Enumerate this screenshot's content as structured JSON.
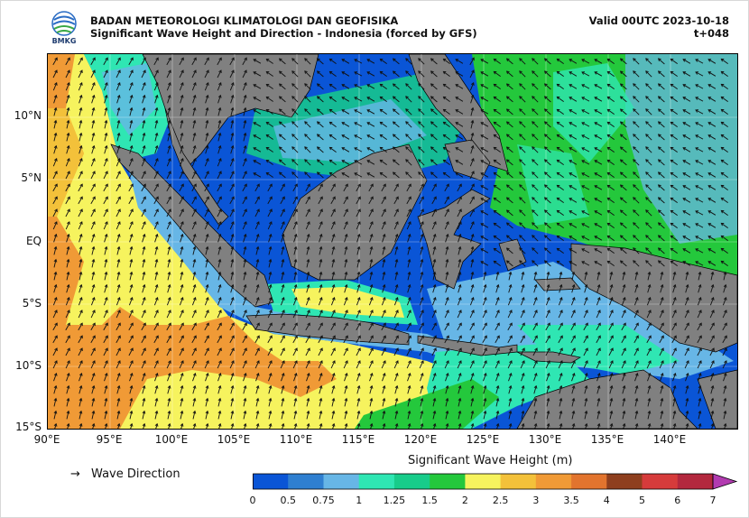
{
  "header": {
    "logo_text": "BMKG",
    "title_line1": "BADAN METEOROLOGI KLIMATOLOGI DAN GEOFISIKA",
    "title_line2": "Significant Wave Height and Direction - Indonesia (forced by GFS)",
    "valid": "Valid 00UTC 2023-10-18",
    "lead": "t+048"
  },
  "map": {
    "lat_labels": [
      "10°N",
      "5°N",
      "EQ",
      "5°S",
      "10°S",
      "15°S"
    ],
    "lon_labels": [
      "90°E",
      "95°E",
      "100°E",
      "105°E",
      "110°E",
      "115°E",
      "120°E",
      "125°E",
      "130°E",
      "135°E",
      "140°E"
    ],
    "land_color": "#808080",
    "grid": true,
    "arrow_direction": "north-east (south-westerly swell) in Indian Ocean, south-west in Pacific and South China Sea"
  },
  "legend": {
    "arrow_glyph": "→",
    "wave_direction_label": "Wave Direction",
    "colorbar_title": "Significant Wave Height (m)",
    "ticks": [
      "0",
      "0.5",
      "0.75",
      "1",
      "1.25",
      "1.5",
      "2",
      "2.5",
      "3",
      "3.5",
      "4",
      "5",
      "6",
      "7"
    ],
    "colors": [
      "#0a55d6",
      "#2f7fd0",
      "#67b6e6",
      "#2fe6b3",
      "#18cc8a",
      "#24c83c",
      "#f6f35e",
      "#f3c13a",
      "#f09a36",
      "#e2742e",
      "#8e3f1e",
      "#d63b3b",
      "#b3283e",
      "#d93bd0",
      "#b23bb0"
    ]
  }
}
